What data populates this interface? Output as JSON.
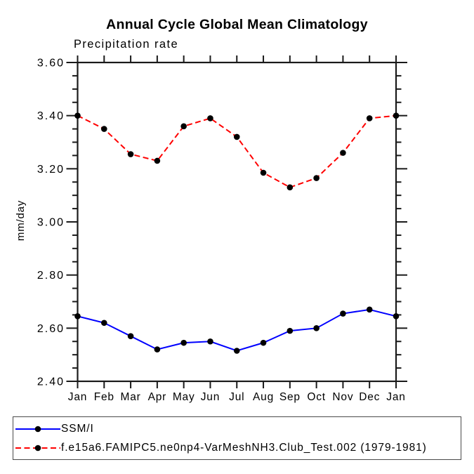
{
  "title": "Annual Cycle Global Mean Climatology",
  "subtitle": "Precipitation rate",
  "colors": {
    "obs_line": "#0000ff",
    "model_line": "#ff0000",
    "marker": "#000000",
    "axis": "#1a1a1a",
    "legend_border": "#4a4a4a"
  },
  "chart_data": {
    "type": "line",
    "title": "Annual Cycle Global Mean Climatology",
    "subtitle": "Precipitation rate",
    "ylabel": "mm/day",
    "xlabel": "",
    "ylim": [
      2.4,
      3.6
    ],
    "ytick_major_step": 0.2,
    "ytick_minor_step": 0.05,
    "ytick_labels": [
      "3.60",
      "3.40",
      "3.20",
      "3.00",
      "2.80",
      "2.60",
      "2.40"
    ],
    "grid": false,
    "legend_position": "bottom-left",
    "categories": [
      "Jan",
      "Feb",
      "Mar",
      "Apr",
      "May",
      "Jun",
      "Jul",
      "Aug",
      "Sep",
      "Oct",
      "Nov",
      "Dec",
      "Jan"
    ],
    "series": [
      {
        "name": "SSM/I",
        "line_style": "solid",
        "color": "#0000ff",
        "marker_color": "#000000",
        "values": [
          2.645,
          2.62,
          2.57,
          2.52,
          2.545,
          2.55,
          2.515,
          2.545,
          2.59,
          2.6,
          2.655,
          2.67,
          2.645
        ]
      },
      {
        "name": "f.e15a6.FAMIPC5.ne0np4-VarMeshNH3.Club_Test.002 (1979-1981)",
        "line_style": "dashed",
        "color": "#ff0000",
        "marker_color": "#000000",
        "values": [
          3.4,
          3.35,
          3.255,
          3.23,
          3.36,
          3.39,
          3.32,
          3.185,
          3.13,
          3.165,
          3.26,
          3.39,
          3.4
        ]
      }
    ]
  }
}
